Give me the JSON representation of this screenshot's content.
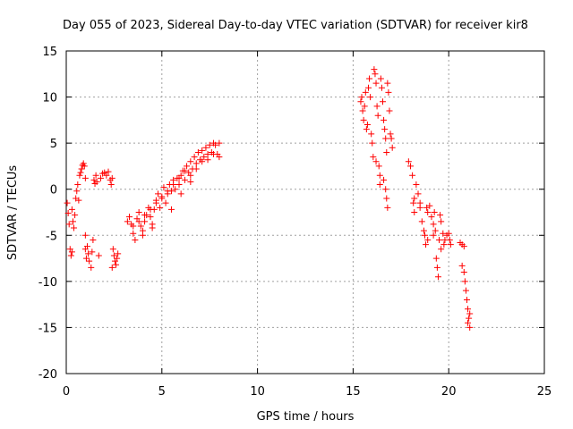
{
  "chart_data": {
    "type": "scatter",
    "title": "Day 055 of 2023, Sidereal Day-to-day VTEC variation (SDTVAR) for receiver kir8",
    "xlabel": "GPS time / hours",
    "ylabel": "SDTVAR / TECUs",
    "xlim": [
      0,
      25
    ],
    "ylim": [
      -20,
      15
    ],
    "xticks": [
      0,
      5,
      10,
      15,
      20,
      25
    ],
    "yticks": [
      -20,
      -15,
      -10,
      -5,
      0,
      5,
      10,
      15
    ],
    "grid": true,
    "marker": "+",
    "series_color": "#ff0000",
    "series": [
      {
        "name": "SDTVAR",
        "points": [
          [
            0.05,
            -1.5
          ],
          [
            0.1,
            -2.6
          ],
          [
            0.15,
            -3.8
          ],
          [
            0.2,
            -6.5
          ],
          [
            0.25,
            -7.2
          ],
          [
            0.3,
            -6.8
          ],
          [
            0.3,
            -2.2
          ],
          [
            0.35,
            -3.5
          ],
          [
            0.4,
            -4.2
          ],
          [
            0.45,
            -2.8
          ],
          [
            0.5,
            -1.0
          ],
          [
            0.55,
            -0.2
          ],
          [
            0.6,
            0.5
          ],
          [
            0.65,
            -1.2
          ],
          [
            0.7,
            1.5
          ],
          [
            0.75,
            1.8
          ],
          [
            0.8,
            2.2
          ],
          [
            0.85,
            2.6
          ],
          [
            0.9,
            2.8
          ],
          [
            0.95,
            2.5
          ],
          [
            1.0,
            1.2
          ],
          [
            1.0,
            -5.0
          ],
          [
            1.0,
            -6.5
          ],
          [
            1.05,
            -7.5
          ],
          [
            1.1,
            -6.2
          ],
          [
            1.15,
            -7.0
          ],
          [
            1.2,
            -7.8
          ],
          [
            1.3,
            -8.5
          ],
          [
            1.35,
            -6.8
          ],
          [
            1.4,
            -5.5
          ],
          [
            1.45,
            1.0
          ],
          [
            1.5,
            0.6
          ],
          [
            1.55,
            1.5
          ],
          [
            1.6,
            0.8
          ],
          [
            1.7,
            -7.2
          ],
          [
            1.8,
            1.2
          ],
          [
            1.9,
            1.7
          ],
          [
            2.0,
            1.8
          ],
          [
            2.1,
            1.5
          ],
          [
            2.2,
            1.9
          ],
          [
            2.3,
            1.0
          ],
          [
            2.35,
            0.5
          ],
          [
            2.4,
            1.2
          ],
          [
            2.45,
            -6.5
          ],
          [
            2.5,
            -7.2
          ],
          [
            2.55,
            -7.8
          ],
          [
            2.6,
            -8.2
          ],
          [
            2.65,
            -7.5
          ],
          [
            2.7,
            -7.0
          ],
          [
            2.4,
            -8.5
          ],
          [
            3.2,
            -3.5
          ],
          [
            3.3,
            -3.0
          ],
          [
            3.4,
            -3.8
          ],
          [
            3.5,
            -4.8
          ],
          [
            3.6,
            -5.5
          ],
          [
            3.7,
            -3.2
          ],
          [
            3.8,
            -2.5
          ],
          [
            3.9,
            -4.0
          ],
          [
            4.0,
            -4.5
          ],
          [
            4.1,
            -3.5
          ],
          [
            4.2,
            -2.8
          ],
          [
            4.3,
            -2.0
          ],
          [
            4.4,
            -3.0
          ],
          [
            4.5,
            -3.8
          ],
          [
            4.6,
            -2.2
          ],
          [
            4.7,
            -1.2
          ],
          [
            4.8,
            -0.5
          ],
          [
            4.9,
            -2.0
          ],
          [
            5.0,
            -0.8
          ],
          [
            5.1,
            0.2
          ],
          [
            5.2,
            -1.5
          ],
          [
            5.3,
            -0.5
          ],
          [
            5.4,
            0.5
          ],
          [
            5.5,
            -0.2
          ],
          [
            5.6,
            1.0
          ],
          [
            5.7,
            0.0
          ],
          [
            5.8,
            1.2
          ],
          [
            5.9,
            0.5
          ],
          [
            6.0,
            1.5
          ],
          [
            6.1,
            2.0
          ],
          [
            6.2,
            1.0
          ],
          [
            6.3,
            2.5
          ],
          [
            6.4,
            1.8
          ],
          [
            6.5,
            3.0
          ],
          [
            6.6,
            2.2
          ],
          [
            6.7,
            3.5
          ],
          [
            6.8,
            2.8
          ],
          [
            6.9,
            4.0
          ],
          [
            7.0,
            3.2
          ],
          [
            7.1,
            4.2
          ],
          [
            7.2,
            3.5
          ],
          [
            7.3,
            4.5
          ],
          [
            7.4,
            3.8
          ],
          [
            7.5,
            4.8
          ],
          [
            7.6,
            4.0
          ],
          [
            7.7,
            5.0
          ],
          [
            7.8,
            4.8
          ],
          [
            7.9,
            3.8
          ],
          [
            8.0,
            5.0
          ],
          [
            8.0,
            3.5
          ],
          [
            3.5,
            -4.0
          ],
          [
            3.8,
            -3.5
          ],
          [
            4.1,
            -2.8
          ],
          [
            4.4,
            -2.2
          ],
          [
            4.7,
            -1.5
          ],
          [
            5.0,
            -1.0
          ],
          [
            5.3,
            -0.2
          ],
          [
            5.6,
            0.5
          ],
          [
            5.9,
            1.2
          ],
          [
            6.2,
            2.0
          ],
          [
            6.5,
            1.5
          ],
          [
            6.8,
            2.2
          ],
          [
            7.1,
            3.0
          ],
          [
            7.4,
            3.2
          ],
          [
            7.7,
            3.8
          ],
          [
            4.0,
            -5.0
          ],
          [
            4.5,
            -4.2
          ],
          [
            5.5,
            -2.2
          ],
          [
            6.0,
            -0.5
          ],
          [
            6.5,
            0.8
          ],
          [
            15.4,
            9.5
          ],
          [
            15.45,
            10.0
          ],
          [
            15.5,
            8.5
          ],
          [
            15.55,
            7.5
          ],
          [
            15.6,
            9.0
          ],
          [
            15.65,
            10.5
          ],
          [
            15.7,
            6.5
          ],
          [
            15.75,
            7.0
          ],
          [
            15.8,
            11.0
          ],
          [
            15.85,
            12.0
          ],
          [
            15.9,
            10.0
          ],
          [
            15.95,
            6.0
          ],
          [
            16.0,
            5.0
          ],
          [
            16.05,
            3.5
          ],
          [
            16.1,
            13.0
          ],
          [
            16.15,
            12.5
          ],
          [
            16.2,
            11.5
          ],
          [
            16.25,
            9.0
          ],
          [
            16.3,
            8.0
          ],
          [
            16.35,
            2.5
          ],
          [
            16.4,
            1.5
          ],
          [
            16.45,
            12.0
          ],
          [
            16.5,
            11.0
          ],
          [
            16.55,
            9.5
          ],
          [
            16.6,
            7.5
          ],
          [
            16.65,
            6.5
          ],
          [
            16.7,
            5.5
          ],
          [
            16.75,
            4.0
          ],
          [
            16.8,
            11.5
          ],
          [
            16.85,
            10.5
          ],
          [
            16.9,
            8.5
          ],
          [
            16.95,
            6.0
          ],
          [
            17.0,
            5.5
          ],
          [
            17.05,
            4.5
          ],
          [
            16.6,
            1.0
          ],
          [
            16.7,
            0.0
          ],
          [
            16.75,
            -1.0
          ],
          [
            16.8,
            -2.0
          ],
          [
            16.4,
            0.5
          ],
          [
            16.2,
            3.0
          ],
          [
            17.9,
            3.0
          ],
          [
            18.0,
            2.5
          ],
          [
            18.1,
            1.5
          ],
          [
            18.15,
            -1.5
          ],
          [
            18.2,
            -2.5
          ],
          [
            18.3,
            0.5
          ],
          [
            18.4,
            -0.5
          ],
          [
            18.5,
            -1.5
          ],
          [
            18.6,
            -3.5
          ],
          [
            18.7,
            -4.5
          ],
          [
            18.75,
            -5.0
          ],
          [
            18.8,
            -6.0
          ],
          [
            18.85,
            -2.0
          ],
          [
            18.9,
            -2.5
          ],
          [
            19.0,
            -1.8
          ],
          [
            19.1,
            -3.0
          ],
          [
            19.2,
            -3.8
          ],
          [
            19.25,
            -2.5
          ],
          [
            19.3,
            -4.5
          ],
          [
            19.35,
            -7.5
          ],
          [
            19.4,
            -8.5
          ],
          [
            19.45,
            -9.5
          ],
          [
            19.5,
            -5.5
          ],
          [
            19.55,
            -2.8
          ],
          [
            19.6,
            -3.5
          ],
          [
            19.7,
            -4.8
          ],
          [
            19.75,
            -6.0
          ],
          [
            19.8,
            -5.5
          ],
          [
            19.9,
            -5.0
          ],
          [
            20.0,
            -4.8
          ],
          [
            20.05,
            -5.5
          ],
          [
            20.1,
            -6.0
          ],
          [
            20.6,
            -5.8
          ],
          [
            20.7,
            -6.0
          ],
          [
            20.8,
            -6.2
          ],
          [
            20.7,
            -8.3
          ],
          [
            20.8,
            -9.0
          ],
          [
            20.85,
            -10.0
          ],
          [
            20.9,
            -11.0
          ],
          [
            20.95,
            -12.0
          ],
          [
            21.0,
            -13.0
          ],
          [
            21.05,
            -14.0
          ],
          [
            21.1,
            -15.0
          ],
          [
            21.0,
            -14.5
          ],
          [
            21.1,
            -13.5
          ],
          [
            18.9,
            -5.5
          ],
          [
            18.2,
            -1.0
          ],
          [
            18.5,
            -2.0
          ],
          [
            19.2,
            -5.0
          ],
          [
            19.6,
            -6.5
          ]
        ]
      }
    ]
  }
}
